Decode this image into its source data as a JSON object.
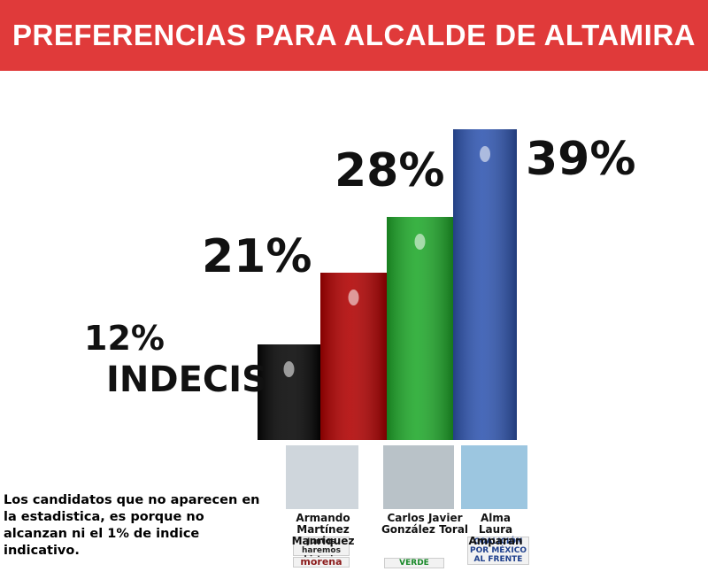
{
  "chart_data": {
    "type": "bar",
    "title": "PREFERENCIAS PARA ALCALDE DE ALTAMIRA",
    "categories": [
      "INDECIS",
      "Armando Martínez Manriquez",
      "Carlos Javier González Toral",
      "Alma Laura Amparan"
    ],
    "values": [
      12,
      21,
      28,
      39
    ],
    "value_labels": [
      "12%",
      "21%",
      "28%",
      "39%"
    ],
    "colors": [
      "#050505",
      "#b00000",
      "#1fa82a",
      "#2f55b0"
    ],
    "note": "Los candidatos que no aparecen en la estadistica, es porque no alcanzan ni el 1% de indice indicativo.",
    "logos": [
      "Juntos haremos historia",
      "morena",
      "VERDE",
      "COALICIÓN POR MÉXICO AL FRENTE"
    ]
  }
}
